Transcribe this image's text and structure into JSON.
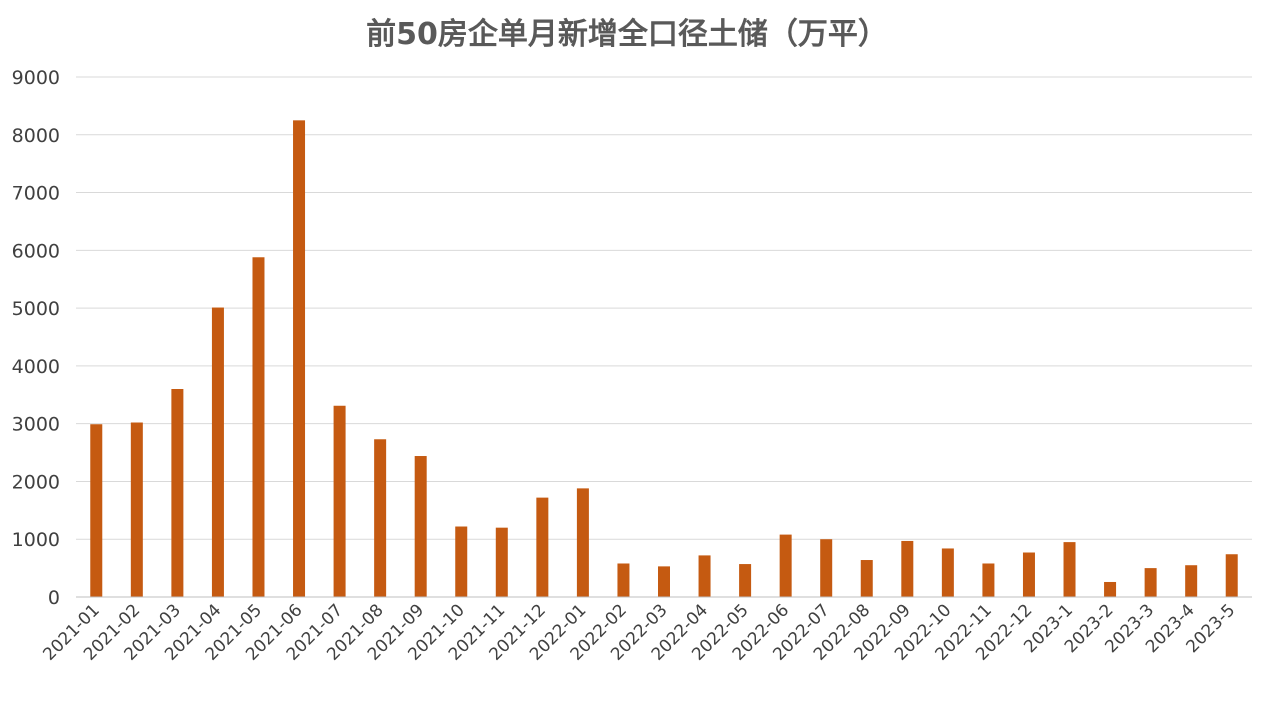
{
  "chart_data": {
    "type": "bar",
    "title": "前50房企单月新增全口径土储（万平）",
    "xlabel": "",
    "ylabel": "",
    "ylim": [
      0,
      9000
    ],
    "yticks": [
      0,
      1000,
      2000,
      3000,
      4000,
      5000,
      6000,
      7000,
      8000,
      9000
    ],
    "grid": true,
    "legend": "none",
    "bar_color": "#C55A11",
    "categories": [
      "2021-01",
      "2021-02",
      "2021-03",
      "2021-04",
      "2021-05",
      "2021-06",
      "2021-07",
      "2021-08",
      "2021-09",
      "2021-10",
      "2021-11",
      "2021-12",
      "2022-01",
      "2022-02",
      "2022-03",
      "2022-04",
      "2022-05",
      "2022-06",
      "2022-07",
      "2022-08",
      "2022-09",
      "2022-10",
      "2022-11",
      "2022-12",
      "2023-1",
      "2023-2",
      "2023-3",
      "2023-4",
      "2023-5"
    ],
    "values": [
      2990,
      3020,
      3600,
      5010,
      5880,
      8250,
      3310,
      2730,
      2440,
      1220,
      1200,
      1720,
      1880,
      580,
      530,
      720,
      570,
      1080,
      1000,
      640,
      970,
      840,
      580,
      770,
      950,
      260,
      500,
      550,
      740
    ]
  }
}
